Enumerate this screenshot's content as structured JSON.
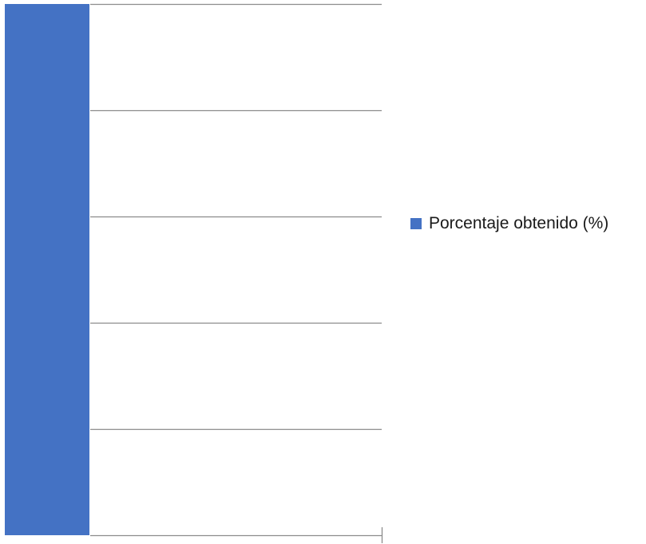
{
  "chart_data": {
    "type": "bar",
    "categories": [
      ""
    ],
    "series": [
      {
        "name": "Porcentaje obtenido (%)",
        "values": [
          100
        ],
        "color": "#4472C4"
      }
    ],
    "ylim": [
      0,
      100
    ],
    "grid": true,
    "legend_position": "right"
  },
  "colors": {
    "bar": "#4472C4",
    "gridline": "#8c8c8c",
    "axis": "#8c8c8c"
  }
}
